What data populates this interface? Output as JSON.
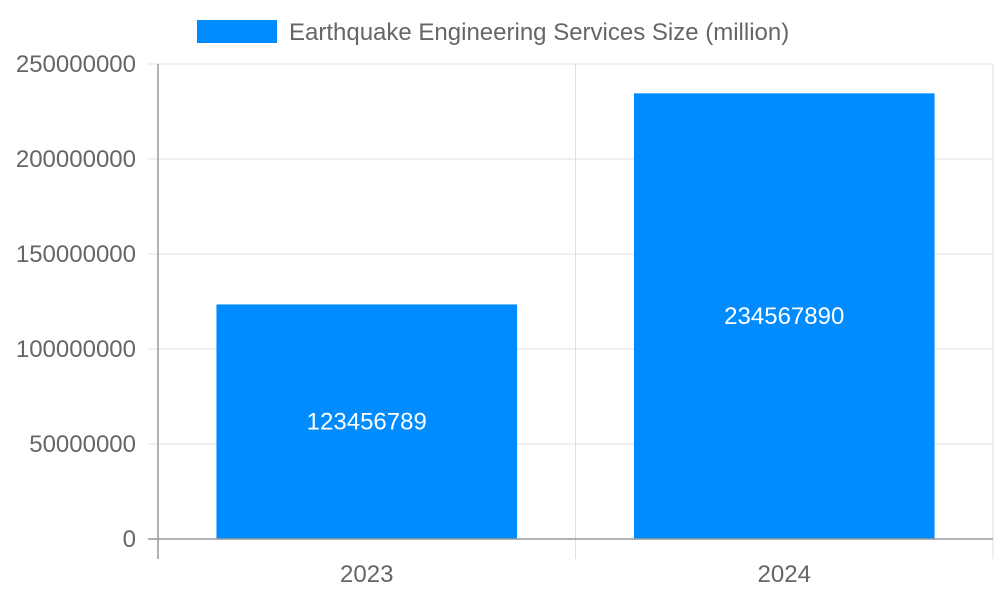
{
  "chart_data": {
    "type": "bar",
    "categories": [
      "2023",
      "2024"
    ],
    "series": [
      {
        "name": "Earthquake Engineering Services Size (million)",
        "values": [
          123456789,
          234567890
        ],
        "color": "#008cff"
      }
    ],
    "data_labels": [
      "123456789",
      "234567890"
    ],
    "yticks": [
      "0",
      "50000000",
      "100000000",
      "150000000",
      "200000000",
      "250000000"
    ],
    "ylim": [
      0,
      250000000
    ],
    "grid": true,
    "legend": "top-center"
  }
}
